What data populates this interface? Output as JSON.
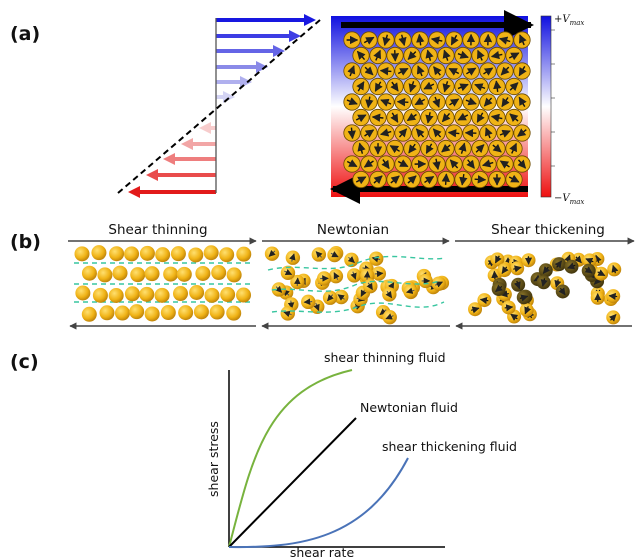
{
  "panels": {
    "a": {
      "label": "(a)",
      "colorbar_top": "+V",
      "colorbar_top_sub": "max",
      "colorbar_bottom": "−V",
      "colorbar_bottom_sub": "max"
    },
    "b": {
      "label": "(b)",
      "titles": [
        "Shear thinning",
        "Newtonian",
        "Shear thickening"
      ]
    },
    "c": {
      "label": "(c)",
      "curves": [
        "shear thinning fluid",
        "Newtonian fluid",
        "shear thickening fluid"
      ],
      "ylabel": "shear stress",
      "xlabel": "shear rate"
    }
  },
  "colors": {
    "velocity_pos": "#1b1bd9",
    "velocity_neg": "#e01818",
    "particle": "#f0b316",
    "particle_dark": "#5a4a14",
    "dashed_line": "#39c6a0",
    "thinning_curve": "#78b33e",
    "newtonian_curve": "#000000",
    "thickening_curve": "#4a73b8"
  }
}
